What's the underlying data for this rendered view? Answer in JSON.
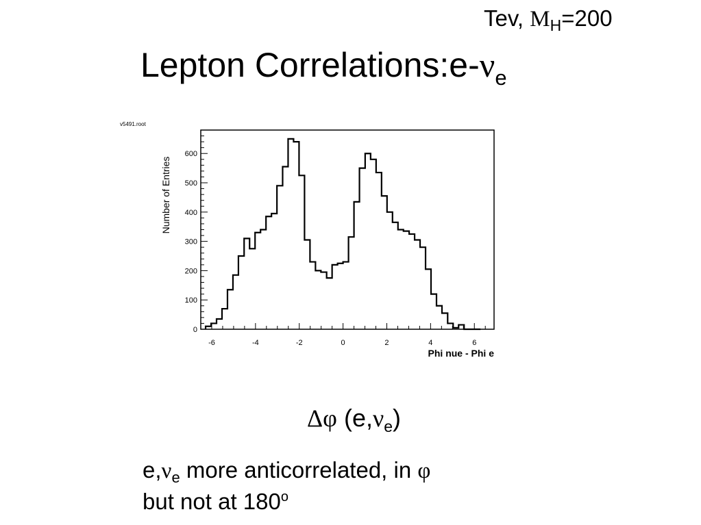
{
  "header": {
    "tev_prefix": "Tev,",
    "mh_symbol": "M",
    "mh_subscript": "H",
    "mh_value": "=200"
  },
  "title": {
    "main": "Lepton Correlations:e-",
    "nu": "ν",
    "subscript": "e"
  },
  "chart_data": {
    "type": "bar",
    "histogram_name": "v5491.root",
    "xlabel": "Phi nue - Phi e",
    "ylabel": "Number of Entries",
    "xlim": [
      -6.5,
      6.9
    ],
    "ylim": [
      0,
      680
    ],
    "x_ticks": [
      "-6",
      "-4",
      "-2",
      "0",
      "2",
      "4",
      "6"
    ],
    "y_ticks": [
      "0",
      "100",
      "200",
      "300",
      "400",
      "500",
      "600"
    ],
    "bin_edges": [
      -6.28,
      -6.03,
      -5.78,
      -5.53,
      -5.28,
      -5.03,
      -4.78,
      -4.52,
      -4.27,
      -4.02,
      -3.77,
      -3.52,
      -3.27,
      -3.02,
      -2.76,
      -2.51,
      -2.26,
      -2.01,
      -1.76,
      -1.51,
      -1.26,
      -1.01,
      -0.75,
      -0.5,
      -0.25,
      0.0,
      0.25,
      0.5,
      0.75,
      1.01,
      1.26,
      1.51,
      1.76,
      2.01,
      2.26,
      2.51,
      2.76,
      3.02,
      3.27,
      3.52,
      3.77,
      4.02,
      4.27,
      4.52,
      4.78,
      5.03,
      5.28,
      5.53,
      5.78,
      6.03,
      6.28
    ],
    "values": [
      10,
      20,
      35,
      70,
      135,
      185,
      250,
      310,
      275,
      330,
      340,
      385,
      395,
      490,
      555,
      650,
      640,
      525,
      305,
      230,
      200,
      195,
      175,
      220,
      225,
      230,
      315,
      435,
      550,
      600,
      580,
      535,
      455,
      400,
      365,
      340,
      335,
      325,
      305,
      280,
      205,
      120,
      80,
      55,
      20,
      5,
      15,
      0,
      0,
      0
    ]
  },
  "xlabel_greek": {
    "delta": "Δ",
    "phi": "φ",
    "open": "(e,",
    "nu": "ν",
    "sub": "e",
    "close": ")"
  },
  "notes": {
    "line1_a": "e,",
    "line1_nu": "ν",
    "line1_sub": "e",
    "line1_b": " more anticorrelated, in ",
    "line1_phi": "φ",
    "line2": "but not at 180",
    "line2_sup": "o"
  }
}
